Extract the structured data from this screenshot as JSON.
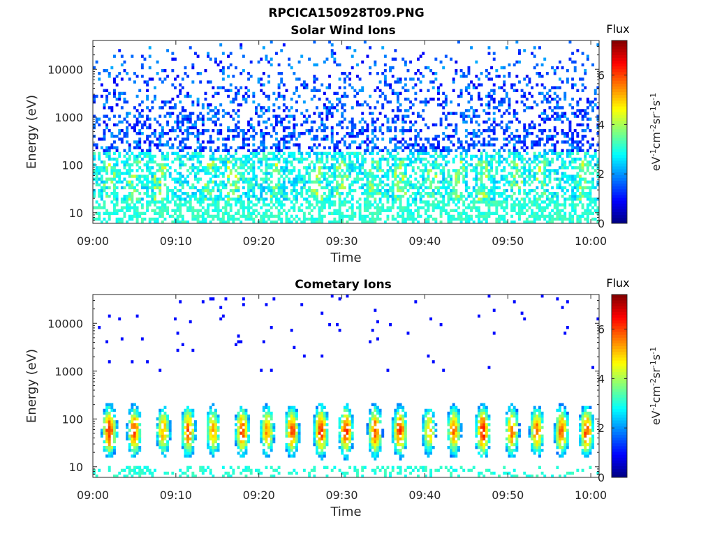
{
  "figure": {
    "title": "RPCICA150928T09.PNG"
  },
  "colormap": "jet",
  "chart_data": [
    {
      "type": "heatmap",
      "title": "Solar Wind Ions",
      "xlabel": "Time",
      "ylabel": "Energy (eV)",
      "x_ticks": [
        "09:00",
        "09:10",
        "09:20",
        "09:30",
        "09:40",
        "09:50",
        "10:00"
      ],
      "y_ticks": [
        "10",
        "100",
        "1000",
        "10000"
      ],
      "y_scale": "log",
      "xlim": [
        "09:00",
        "10:01"
      ],
      "ylim": [
        6,
        40000
      ],
      "colorbar": {
        "label": "Flux",
        "units": "eV-1cm-2sr-1s-1",
        "ticks": [
          "0",
          "2",
          "4",
          "6"
        ],
        "range": [
          0,
          7.4
        ]
      },
      "description_of_values": {
        "above_200eV": "sparse low flux, about 1 to 2",
        "20_to_200eV": "moderate flux, about 2.5 to 3.5, periodic peaks near 4",
        "below_20eV": "flux about 3, intermittent columns"
      },
      "bursts_minutes_after_0900": [
        2,
        5,
        8,
        14,
        17,
        22,
        27,
        30,
        34,
        37,
        41,
        44,
        47,
        51,
        54,
        59
      ]
    },
    {
      "type": "heatmap",
      "title": "Cometary Ions",
      "xlabel": "Time",
      "ylabel": "Energy (eV)",
      "x_ticks": [
        "09:00",
        "09:10",
        "09:20",
        "09:30",
        "09:40",
        "09:50",
        "10:00"
      ],
      "y_ticks": [
        "10",
        "100",
        "1000",
        "10000"
      ],
      "y_scale": "log",
      "xlim": [
        "09:00",
        "10:01"
      ],
      "ylim": [
        6,
        40000
      ],
      "colorbar": {
        "label": "Flux",
        "units": "eV-1cm-2sr-1s-1",
        "ticks": [
          "0",
          "2",
          "4",
          "6"
        ],
        "range": [
          0,
          7.4
        ]
      },
      "bursts": [
        {
          "minute": 2.0,
          "peak_flux": 6.3
        },
        {
          "minute": 5.0,
          "peak_flux": 5.9
        },
        {
          "minute": 8.5,
          "peak_flux": 5.2
        },
        {
          "minute": 11.5,
          "peak_flux": 5.8
        },
        {
          "minute": 14.5,
          "peak_flux": 5.3
        },
        {
          "minute": 18.0,
          "peak_flux": 5.9
        },
        {
          "minute": 21.0,
          "peak_flux": 5.4
        },
        {
          "minute": 24.0,
          "peak_flux": 6.0
        },
        {
          "minute": 27.5,
          "peak_flux": 6.2
        },
        {
          "minute": 30.5,
          "peak_flux": 6.2
        },
        {
          "minute": 34.0,
          "peak_flux": 6.0
        },
        {
          "minute": 37.0,
          "peak_flux": 6.1
        },
        {
          "minute": 40.5,
          "peak_flux": 5.0
        },
        {
          "minute": 43.5,
          "peak_flux": 5.6
        },
        {
          "minute": 47.0,
          "peak_flux": 6.4
        },
        {
          "minute": 50.5,
          "peak_flux": 5.7
        },
        {
          "minute": 53.5,
          "peak_flux": 5.7
        },
        {
          "minute": 56.5,
          "peak_flux": 5.8
        },
        {
          "minute": 59.5,
          "peak_flux": 6.0
        }
      ],
      "description_of_values": {
        "core": "cometary ion bursts centred near 40 to 80 eV, flux up to about 6.5",
        "high_energy": "isolated points between 1000 and 30000 eV, flux about 1",
        "below_10eV": "intermittent columns, flux about 3"
      }
    }
  ]
}
